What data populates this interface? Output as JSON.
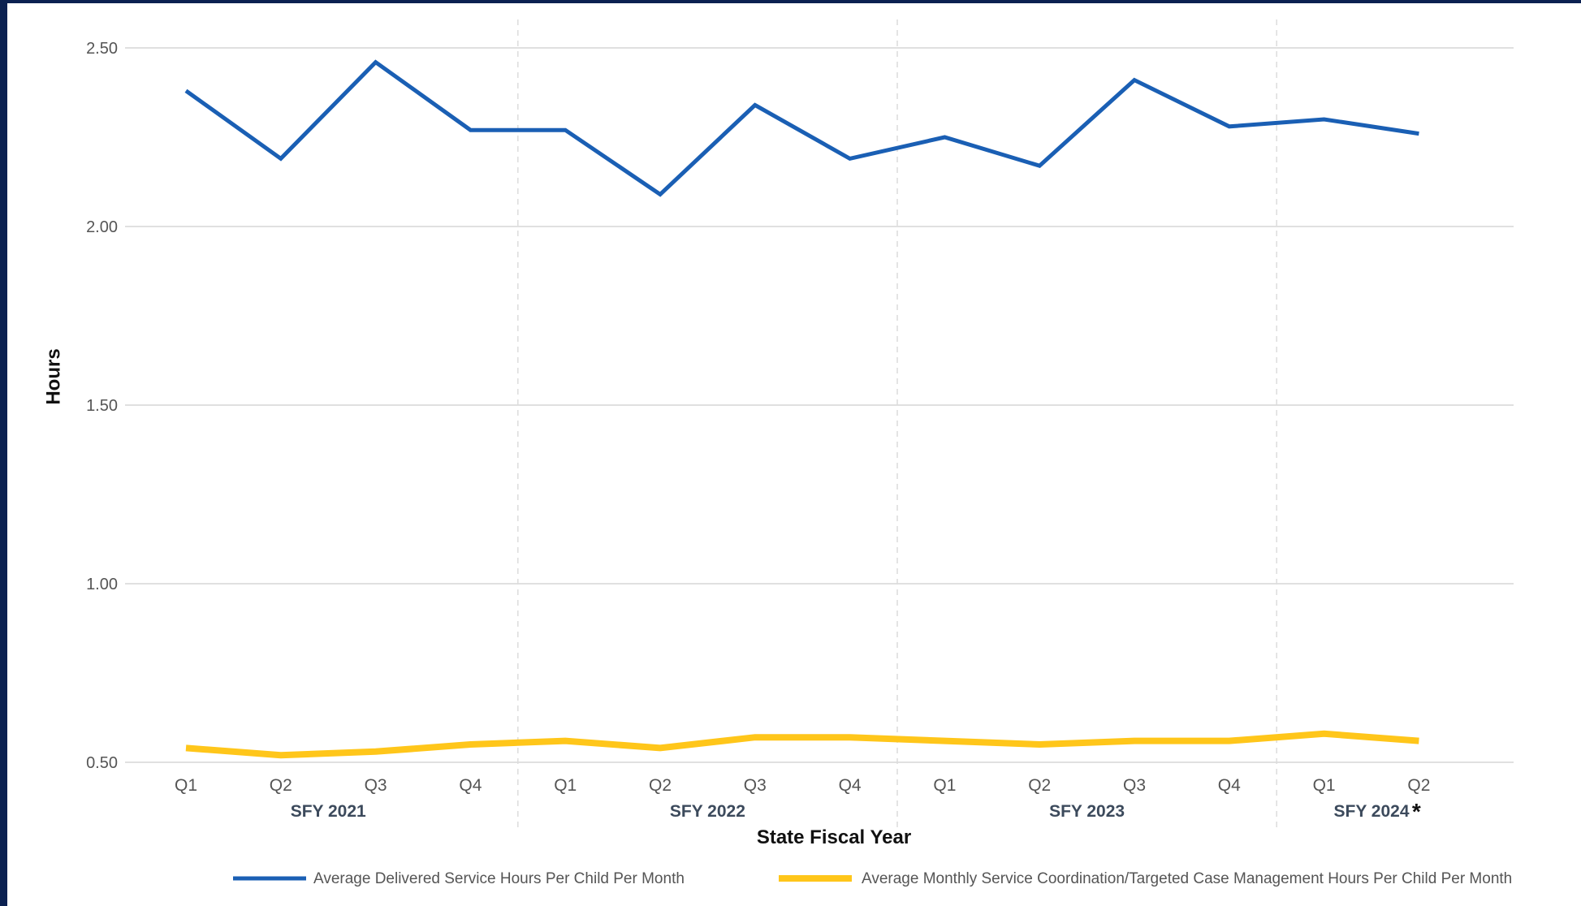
{
  "chart_data": {
    "type": "line",
    "xlabel": "State Fiscal Year",
    "ylabel": "Hours",
    "ylim": [
      0.5,
      2.5
    ],
    "y_ticks": [
      "2.50",
      "2.00",
      "1.50",
      "1.00",
      "0.50"
    ],
    "categories": [
      "Q1",
      "Q2",
      "Q3",
      "Q4",
      "Q1",
      "Q2",
      "Q3",
      "Q4",
      "Q1",
      "Q2",
      "Q3",
      "Q4",
      "Q1",
      "Q2"
    ],
    "groups": [
      {
        "label": "SFY 2021",
        "count": 4
      },
      {
        "label": "SFY 2022",
        "count": 4
      },
      {
        "label": "SFY 2023",
        "count": 4
      },
      {
        "label": "SFY 2024",
        "count": 2,
        "note_mark": "*"
      }
    ],
    "grid": true,
    "legend_position": "bottom",
    "series": [
      {
        "name": "Average Delivered Service Hours Per Child Per Month",
        "color": "#1a5fb4",
        "values": [
          2.38,
          2.19,
          2.46,
          2.27,
          2.27,
          2.09,
          2.34,
          2.19,
          2.25,
          2.17,
          2.41,
          2.28,
          2.3,
          2.26
        ]
      },
      {
        "name": "Average Monthly Service Coordination/Targeted Case Management Hours Per Child Per Month",
        "color": "#ffc61a",
        "values": [
          0.54,
          0.52,
          0.53,
          0.55,
          0.56,
          0.54,
          0.57,
          0.57,
          0.56,
          0.55,
          0.56,
          0.56,
          0.58,
          0.56
        ]
      }
    ]
  }
}
